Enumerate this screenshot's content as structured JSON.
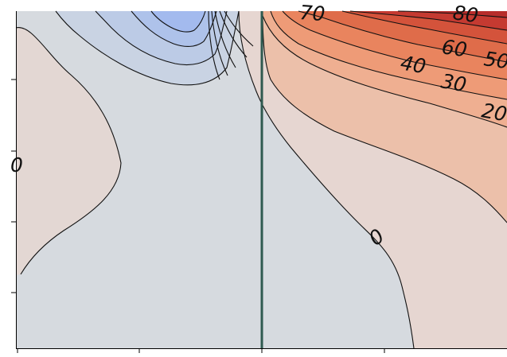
{
  "chart_data": {
    "type": "contour",
    "title": "",
    "xlabel": "",
    "ylabel": "",
    "grid": false,
    "legend": "none",
    "colormap": "coolwarm",
    "contour_level_labels": [
      "70",
      "80",
      "60",
      "50",
      "40",
      "30",
      "20",
      "0",
      "0"
    ],
    "levels": [
      -30,
      -25,
      -20,
      -15,
      -10,
      -5,
      0,
      10,
      20,
      30,
      40,
      50,
      60,
      70,
      80
    ],
    "vertical_reference_line": {
      "color": "#2f5a50"
    },
    "x_tick_count": 4,
    "y_tick_count": 4
  },
  "colors": {
    "background": "#ffffff",
    "fill_neutral": "#d6dadf",
    "fill_warm_low": "#e3d7d3",
    "fill_warm_outer": "#e6d6d1",
    "fill_blue_1": "#c9d3e3",
    "fill_blue_2": "#bccbe6",
    "fill_blue_3": "#aec2ea",
    "fill_blue_4": "#a3baee",
    "fill_red_10": "#ecc0aa",
    "fill_red_20": "#efaf91",
    "fill_red_30": "#ee9b77",
    "fill_red_40": "#e9845e",
    "fill_red_50": "#df6c4a",
    "fill_red_60": "#d4533b",
    "fill_red_70": "#c53a31",
    "fill_red_80": "#b72d2b",
    "contour_line": "#111111",
    "axis": "#000000"
  }
}
